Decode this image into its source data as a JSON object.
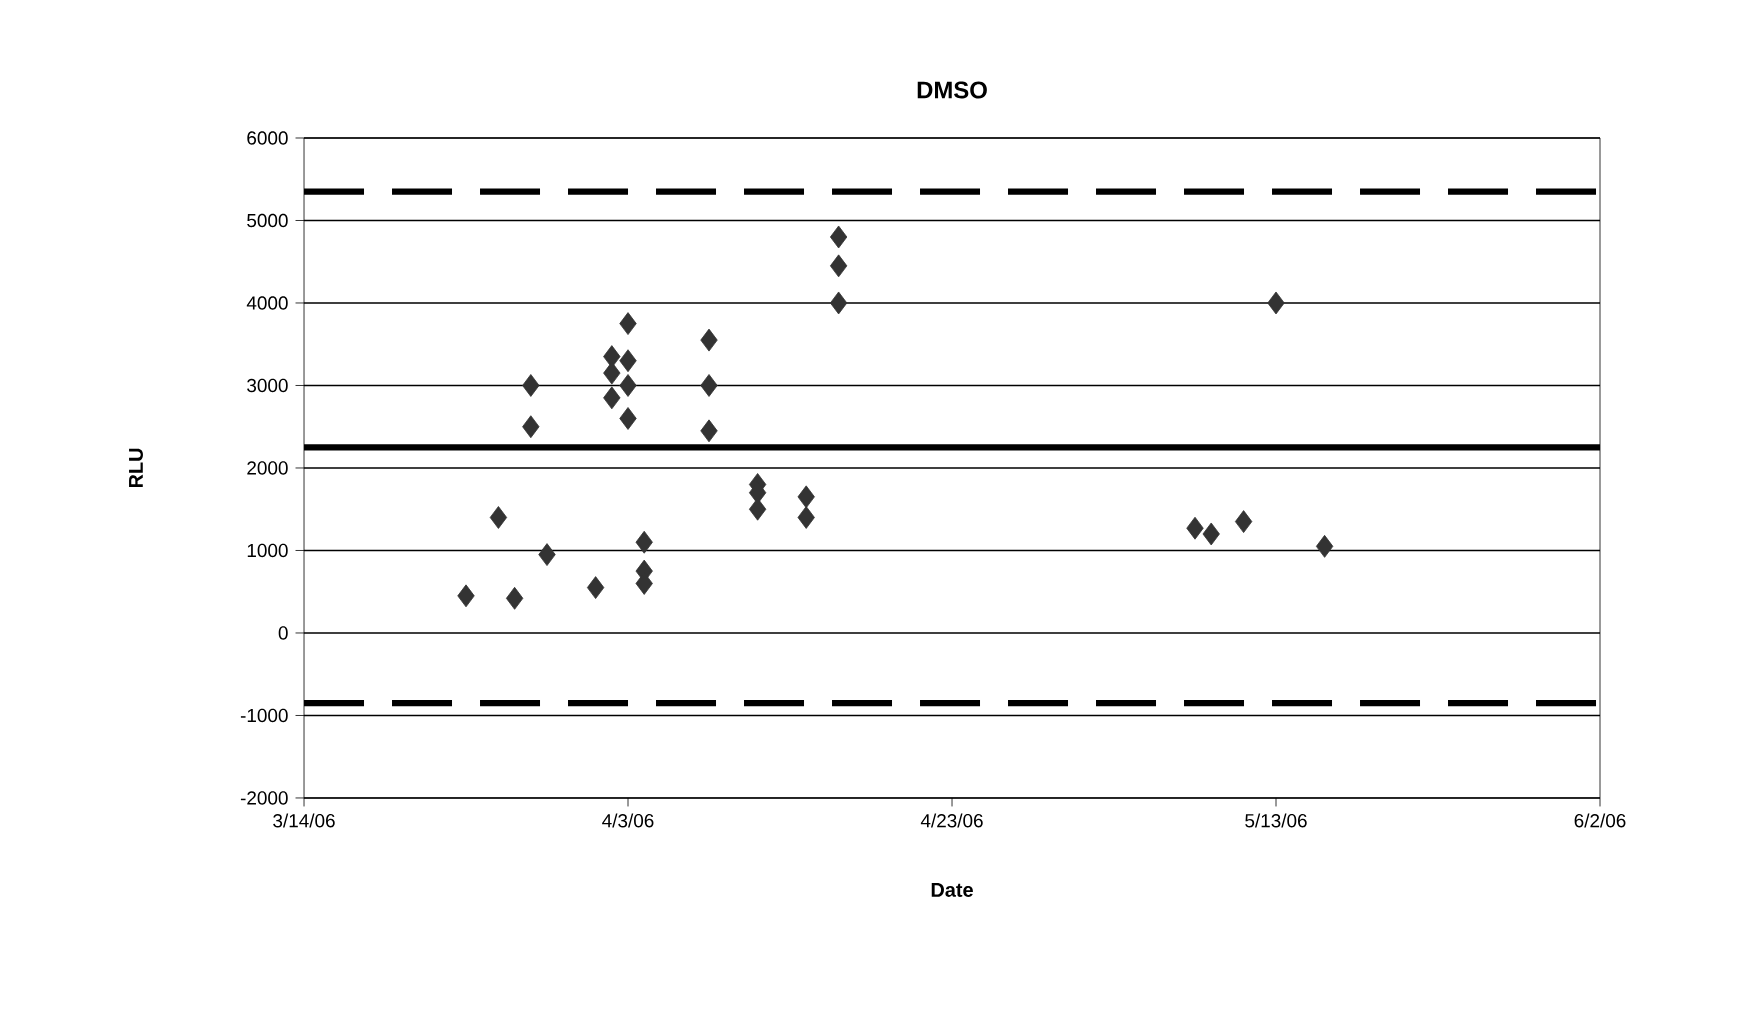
{
  "chart_data": {
    "type": "scatter",
    "title": "DMSO",
    "xlabel": "Date",
    "ylabel": "RLU",
    "x": [
      "2006-03-24",
      "2006-03-26",
      "2006-03-27",
      "2006-03-28",
      "2006-03-28",
      "2006-03-29",
      "2006-04-01",
      "2006-04-02",
      "2006-04-02",
      "2006-04-02",
      "2006-04-03",
      "2006-04-03",
      "2006-04-03",
      "2006-04-03",
      "2006-04-04",
      "2006-04-04",
      "2006-04-04",
      "2006-04-08",
      "2006-04-08",
      "2006-04-08",
      "2006-04-11",
      "2006-04-11",
      "2006-04-11",
      "2006-04-14",
      "2006-04-14",
      "2006-04-16",
      "2006-04-16",
      "2006-04-16",
      "2006-05-08",
      "2006-05-09",
      "2006-05-11",
      "2006-05-13",
      "2006-05-16"
    ],
    "values": [
      450,
      1400,
      420,
      3000,
      2500,
      950,
      550,
      3350,
      3150,
      2850,
      3750,
      3300,
      3000,
      2600,
      1100,
      750,
      600,
      3550,
      3000,
      2450,
      1800,
      1700,
      1500,
      1650,
      1400,
      4800,
      4450,
      4000,
      1270,
      1200,
      1350,
      4000,
      1050
    ],
    "color": "#333333",
    "marker": "diamond",
    "xlim": [
      "2006-03-14",
      "2006-06-02"
    ],
    "xticks": [
      {
        "value": "2006-03-14",
        "label": "3/14/06"
      },
      {
        "value": "2006-04-03",
        "label": "4/3/06"
      },
      {
        "value": "2006-04-23",
        "label": "4/23/06"
      },
      {
        "value": "2006-05-13",
        "label": "5/13/06"
      },
      {
        "value": "2006-06-02",
        "label": "6/2/06"
      }
    ],
    "ylim": [
      -2000,
      6000
    ],
    "yticks": [
      -2000,
      -1000,
      0,
      1000,
      2000,
      3000,
      4000,
      5000,
      6000
    ],
    "grid": "y",
    "ref_lines": [
      {
        "axis": "y",
        "value": 5350,
        "color": "#000000",
        "line_style": "dashed"
      },
      {
        "axis": "y",
        "value": 2250,
        "color": "#000000",
        "line_style": "solid"
      },
      {
        "axis": "y",
        "value": -850,
        "color": "#000000",
        "line_style": "dashed"
      }
    ]
  }
}
